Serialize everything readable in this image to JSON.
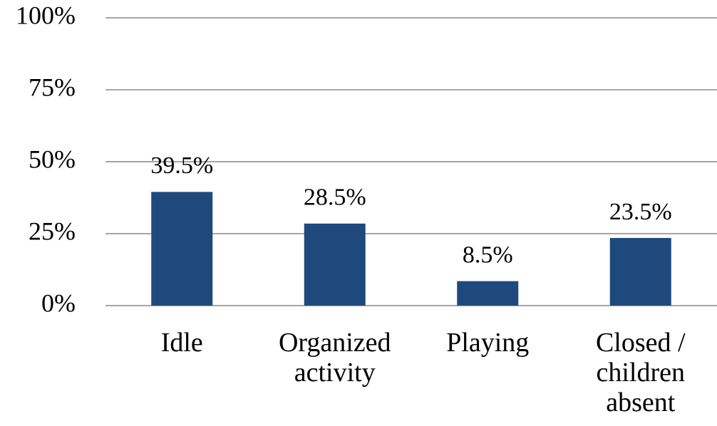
{
  "chart_data": {
    "type": "bar",
    "categories": [
      "Idle",
      "Organized activity",
      "Playing",
      "Closed / children absent"
    ],
    "values": [
      39.5,
      28.5,
      8.5,
      23.5
    ],
    "value_labels": [
      "39.5%",
      "28.5%",
      "8.5%",
      "23.5%"
    ],
    "color": "#1f497d",
    "ylim": [
      0,
      100
    ],
    "yticks": [
      {
        "value": 0,
        "label": "0%"
      },
      {
        "value": 25,
        "label": "25%"
      },
      {
        "value": 50,
        "label": "50%"
      },
      {
        "value": 75,
        "label": "75%"
      },
      {
        "value": 100,
        "label": "100%"
      }
    ],
    "grid": true
  }
}
